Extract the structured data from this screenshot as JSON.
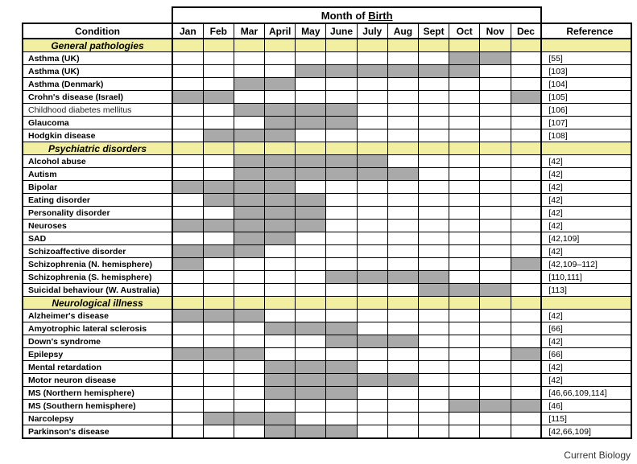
{
  "chart_data": {
    "type": "table",
    "title": "Month of Birth",
    "title_prefix": "Month of ",
    "title_underlined": "Birth",
    "condition_label": "Condition",
    "reference_label": "Reference",
    "months": [
      "Jan",
      "Feb",
      "Mar",
      "April",
      "May",
      "June",
      "July",
      "Aug",
      "Sept",
      "Oct",
      "Nov",
      "Dec"
    ],
    "sections": [
      {
        "title": "General pathologies",
        "rows": [
          {
            "condition": "Asthma (UK)",
            "shaded_months": [
              "Oct",
              "Nov"
            ],
            "reference": "[55]"
          },
          {
            "condition": "Asthma (UK)",
            "shaded_months": [
              "May",
              "June",
              "July",
              "Aug",
              "Sept",
              "Oct"
            ],
            "reference": "[103]"
          },
          {
            "condition": "Asthma (Denmark)",
            "shaded_months": [
              "Mar",
              "April"
            ],
            "reference": "[104]"
          },
          {
            "condition": "Crohn's disease (Israel)",
            "shaded_months": [
              "Jan",
              "Feb",
              "Dec"
            ],
            "reference": "[105]"
          },
          {
            "condition": "Childhood diabetes mellitus",
            "shaded_months": [
              "Mar",
              "April",
              "May",
              "June"
            ],
            "reference": "[106]",
            "light_weight": true
          },
          {
            "condition": "Glaucoma",
            "shaded_months": [
              "April",
              "May",
              "June"
            ],
            "reference": "[107]"
          },
          {
            "condition": "Hodgkin disease",
            "shaded_months": [
              "Feb",
              "Mar",
              "April"
            ],
            "reference": "[108]"
          }
        ]
      },
      {
        "title": "Psychiatric disorders",
        "rows": [
          {
            "condition": "Alcohol abuse",
            "shaded_months": [
              "Mar",
              "April",
              "May",
              "June",
              "July"
            ],
            "reference": "[42]"
          },
          {
            "condition": "Autism",
            "shaded_months": [
              "Mar",
              "April",
              "May",
              "June",
              "July",
              "Aug"
            ],
            "reference": "[42]"
          },
          {
            "condition": "Bipolar",
            "shaded_months": [
              "Jan",
              "Feb",
              "Mar",
              "April"
            ],
            "reference": "[42]"
          },
          {
            "condition": "Eating disorder",
            "shaded_months": [
              "Feb",
              "Mar",
              "April",
              "May"
            ],
            "reference": "[42]"
          },
          {
            "condition": "Personality disorder",
            "shaded_months": [
              "Mar",
              "April",
              "May"
            ],
            "reference": "[42]"
          },
          {
            "condition": "Neuroses",
            "shaded_months": [
              "Jan",
              "Feb",
              "Mar",
              "April",
              "May"
            ],
            "reference": "[42]"
          },
          {
            "condition": "SAD",
            "shaded_months": [
              "Mar",
              "April"
            ],
            "reference": "[42,109]"
          },
          {
            "condition": "Schizoaffective disorder",
            "shaded_months": [
              "Jan",
              "Feb",
              "Mar"
            ],
            "reference": "[42]"
          },
          {
            "condition": "Schizophrenia (N. hemisphere)",
            "shaded_months": [
              "Jan",
              "Dec"
            ],
            "reference": "[42,109–112]"
          },
          {
            "condition": "Schizophrenia (S. hemisphere)",
            "shaded_months": [
              "June",
              "July",
              "Aug",
              "Sept"
            ],
            "reference": "[110,111]"
          },
          {
            "condition": "Suicidal behaviour (W. Australia)",
            "shaded_months": [
              "Sept",
              "Oct",
              "Nov"
            ],
            "reference": "[113]"
          }
        ]
      },
      {
        "title": "Neurological illness",
        "rows": [
          {
            "condition": "Alzheimer's disease",
            "shaded_months": [
              "Jan",
              "Feb",
              "Mar"
            ],
            "reference": "[42]"
          },
          {
            "condition": "Amyotrophic lateral sclerosis",
            "shaded_months": [
              "April",
              "May",
              "June"
            ],
            "reference": "[66]"
          },
          {
            "condition": "Down's syndrome",
            "shaded_months": [
              "June",
              "July",
              "Aug"
            ],
            "reference": "[42]"
          },
          {
            "condition": "Epilepsy",
            "shaded_months": [
              "Jan",
              "Feb",
              "Mar",
              "Dec"
            ],
            "reference": "[66]"
          },
          {
            "condition": "Mental retardation",
            "shaded_months": [
              "April",
              "May",
              "June"
            ],
            "reference": "[42]"
          },
          {
            "condition": "Motor neuron disease",
            "shaded_months": [
              "April",
              "May",
              "June",
              "July",
              "Aug"
            ],
            "reference": "[42]"
          },
          {
            "condition": "MS (Northern hemisphere)",
            "shaded_months": [
              "April",
              "May",
              "June"
            ],
            "reference": "[46,66,109,114]"
          },
          {
            "condition": "MS (Southern hemisphere)",
            "shaded_months": [
              "Oct",
              "Nov",
              "Dec"
            ],
            "reference": "[46]"
          },
          {
            "condition": "Narcolepsy",
            "shaded_months": [
              "Feb",
              "Mar",
              "April"
            ],
            "reference": "[115]"
          },
          {
            "condition": "Parkinson's disease",
            "shaded_months": [
              "April",
              "May",
              "June"
            ],
            "reference": "[42,66,109]"
          }
        ]
      }
    ]
  },
  "footer": {
    "credit": "Current Biology"
  },
  "colors": {
    "section_bg": "#f2efa2",
    "shaded_cell": "#a9a9a9",
    "border": "#000000"
  }
}
